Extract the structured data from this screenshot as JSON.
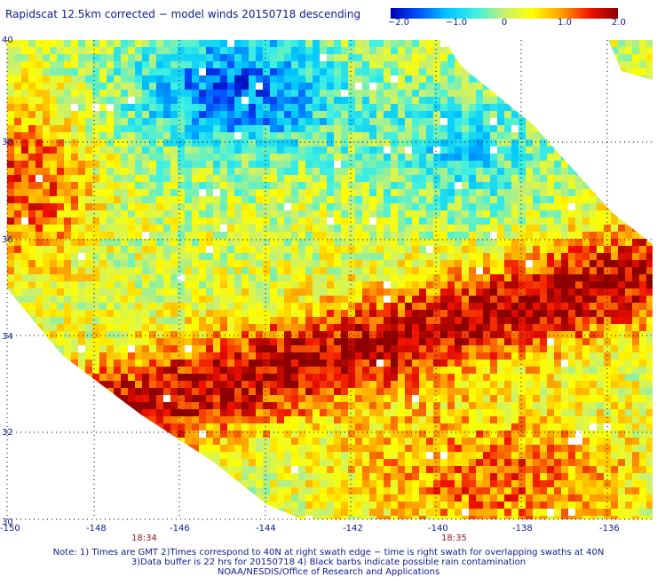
{
  "title": "Rapidscat 12.5km corrected − model winds 20150718 descending",
  "colorbar": {
    "ticks": [
      "−2.0",
      "−1.0",
      "0",
      "1.0",
      "2.0"
    ],
    "min": -2.0,
    "max": 2.0
  },
  "map": {
    "lat_labels": [
      "40",
      "38",
      "36",
      "34",
      "32",
      "30"
    ],
    "lon_labels": [
      "-150",
      "-148",
      "-146",
      "-144",
      "-142",
      "-140",
      "-138",
      "-136"
    ],
    "time_labels": [
      "18:34",
      "18:35"
    ],
    "gridlines": "dotted"
  },
  "notes": {
    "line1": "Note: 1) Times are GMT 2)Times correspond to 40N at right swath edge − time is right swath for overlapping swaths at 40N",
    "line2": "3)Data buffer is 22 hrs for 20150718 4) Black barbs indicate possible rain contamination",
    "line3": "NOAA/NESDIS/Office of Research and Applications"
  },
  "colors": {
    "text": "#0a1a8c",
    "time": "#8b1a1a"
  }
}
